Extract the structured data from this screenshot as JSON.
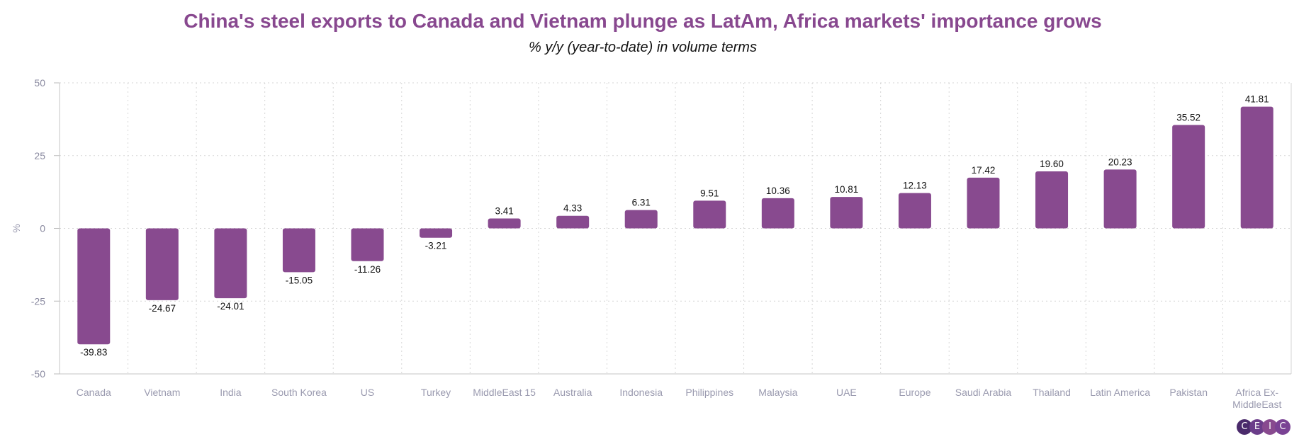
{
  "title": "China's steel exports to Canada and Vietnam plunge as LatAm, Africa markets' importance grows",
  "subtitle": "% y/y (year-to-date) in volume terms",
  "colors": {
    "bar": "#884a8f",
    "title": "#88488f",
    "grid": "#d6d6d6",
    "logo": [
      "#4a2a6b",
      "#6b3d8a",
      "#884a8f",
      "#7a4294"
    ]
  },
  "logo": {
    "letters": [
      "C",
      "E",
      "I",
      "C"
    ]
  },
  "chart_data": {
    "type": "bar",
    "title": "China's steel exports to Canada and Vietnam plunge as LatAm, Africa markets' importance grows",
    "subtitle": "% y/y (year-to-date) in volume terms",
    "xlabel": "",
    "ylabel": "%",
    "ylim": [
      -50,
      50
    ],
    "yticks": [
      50,
      25,
      0,
      -25,
      -50
    ],
    "grid": true,
    "categories": [
      "Canada",
      "Vietnam",
      "India",
      "South Korea",
      "US",
      "Turkey",
      "MiddleEast 15",
      "Australia",
      "Indonesia",
      "Philippines",
      "Malaysia",
      "UAE",
      "Europe",
      "Saudi Arabia",
      "Thailand",
      "Latin America",
      "Pakistan",
      "Africa Ex-MiddleEast"
    ],
    "values": [
      -39.83,
      -24.67,
      -24.01,
      -15.05,
      -11.26,
      -3.21,
      3.41,
      4.33,
      6.31,
      9.51,
      10.36,
      10.81,
      12.13,
      17.42,
      19.6,
      20.23,
      35.52,
      41.81
    ],
    "labels": [
      "-39.83",
      "-24.67",
      "-24.01",
      "-15.05",
      "-11.26",
      "-3.21",
      "3.41",
      "4.33",
      "6.31",
      "9.51",
      "10.36",
      "10.81",
      "12.13",
      "17.42",
      "19.60",
      "20.23",
      "35.52",
      "41.81"
    ]
  }
}
